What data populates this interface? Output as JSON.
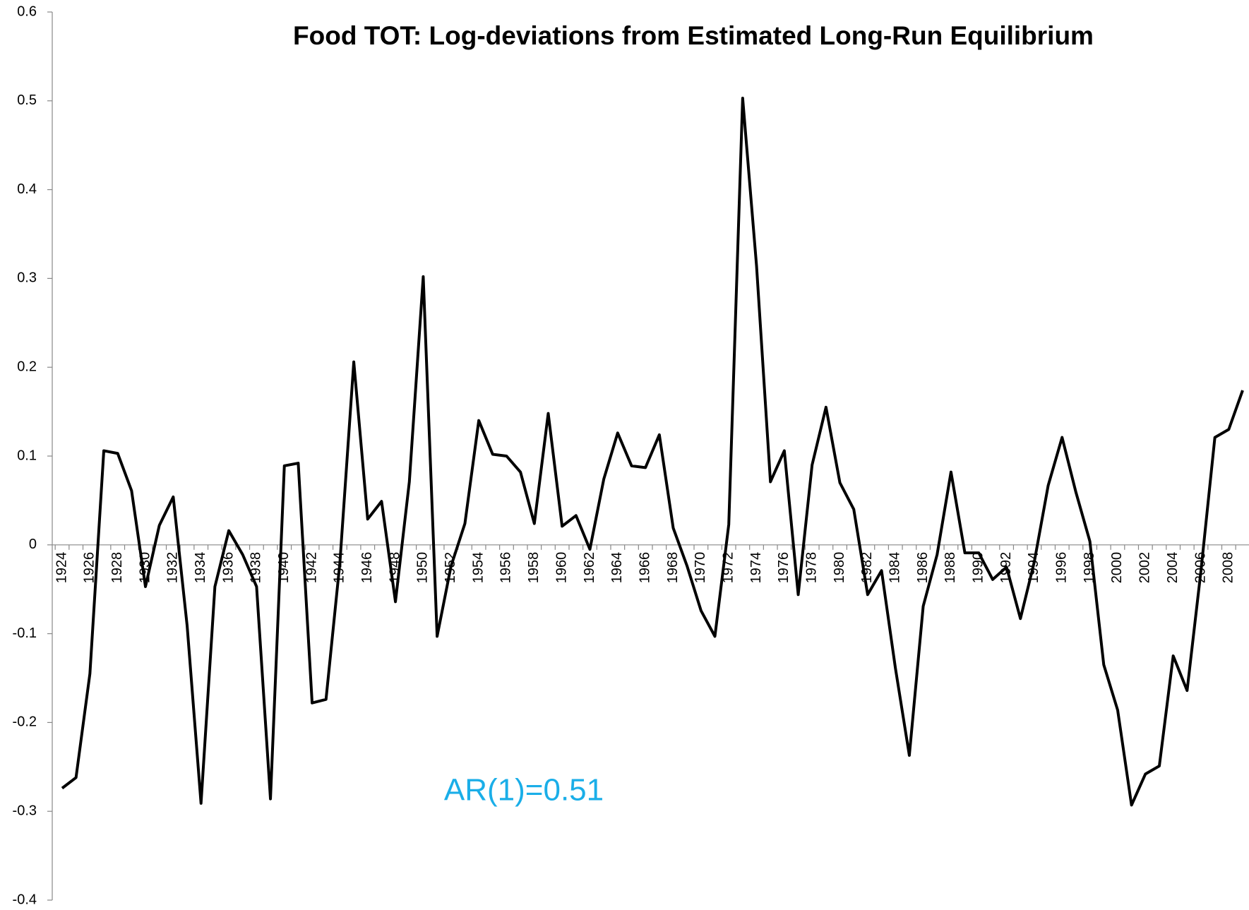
{
  "chart_data": {
    "type": "line",
    "title": "Food TOT: Log-deviations from Estimated Long-Run Equilibrium",
    "annotation": "AR(1)=0.51",
    "annotation_color": "#1aaee8",
    "categories": [
      "1924",
      null,
      "1926",
      null,
      "1928",
      null,
      "1930",
      null,
      "1932",
      null,
      "1934",
      null,
      "1936",
      null,
      "1938",
      null,
      "1940",
      null,
      "1942",
      null,
      "1944",
      null,
      "1946",
      null,
      "1948",
      null,
      "1950",
      null,
      "1952",
      null,
      "1954",
      null,
      "1956",
      null,
      "1958",
      null,
      "1960",
      null,
      "1962",
      null,
      "1964",
      null,
      "1966",
      null,
      "1968",
      null,
      "1970",
      null,
      "1972",
      null,
      "1974",
      null,
      "1976",
      null,
      "1978",
      null,
      "1980",
      null,
      "1982",
      null,
      "1984",
      null,
      "1986",
      null,
      "1988",
      null,
      "1990",
      null,
      "1992",
      null,
      "1994",
      null,
      "1996",
      null,
      "1998",
      null,
      "2000",
      null,
      "2002",
      null,
      "2004",
      null,
      "2006",
      null,
      "2008",
      null
    ],
    "series": [
      {
        "color": "#000000",
        "values": [
          -0.274,
          -0.262,
          -0.145,
          0.106,
          0.103,
          0.061,
          -0.047,
          0.022,
          0.054,
          -0.091,
          -0.291,
          -0.047,
          0.016,
          -0.011,
          -0.047,
          -0.286,
          0.089,
          0.092,
          -0.178,
          -0.174,
          -0.02,
          0.206,
          0.029,
          0.049,
          -0.064,
          0.071,
          0.302,
          -0.103,
          -0.024,
          0.024,
          0.14,
          0.102,
          0.1,
          0.082,
          0.024,
          0.148,
          0.021,
          0.033,
          -0.005,
          0.074,
          0.126,
          0.089,
          0.087,
          0.124,
          0.019,
          -0.024,
          -0.074,
          -0.103,
          0.023,
          0.503,
          0.314,
          0.071,
          0.106,
          -0.056,
          0.09,
          0.155,
          0.07,
          0.04,
          -0.056,
          -0.029,
          -0.139,
          -0.237,
          -0.069,
          -0.011,
          0.082,
          -0.009,
          -0.009,
          -0.039,
          -0.025,
          -0.083,
          -0.019,
          0.067,
          0.121,
          0.059,
          0.004,
          -0.135,
          -0.186,
          -0.293,
          -0.258,
          -0.249,
          -0.125,
          -0.164,
          -0.029,
          0.121,
          0.13,
          0.174
        ]
      }
    ],
    "ylim": [
      -0.4,
      0.6
    ],
    "yticks": [
      -0.4,
      -0.3,
      -0.2,
      -0.1,
      0,
      0.1,
      0.2,
      0.3,
      0.4,
      0.5,
      0.6
    ],
    "grid": false
  }
}
